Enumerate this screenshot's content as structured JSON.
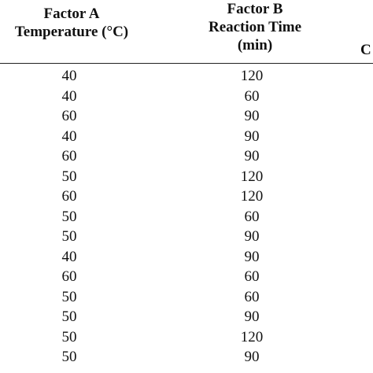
{
  "header": {
    "factor_a_line1": "Factor A",
    "factor_a_line2": "Temperature (°C)",
    "factor_b_line1": "Factor B",
    "factor_b_line2": "Reaction Time",
    "factor_b_line3": "(min)",
    "factor_c_partial": "C"
  },
  "rows": [
    {
      "temperature": "40",
      "time": "120"
    },
    {
      "temperature": "40",
      "time": "60"
    },
    {
      "temperature": "60",
      "time": "90"
    },
    {
      "temperature": "40",
      "time": "90"
    },
    {
      "temperature": "60",
      "time": "90"
    },
    {
      "temperature": "50",
      "time": "120"
    },
    {
      "temperature": "60",
      "time": "120"
    },
    {
      "temperature": "50",
      "time": "60"
    },
    {
      "temperature": "50",
      "time": "90"
    },
    {
      "temperature": "40",
      "time": "90"
    },
    {
      "temperature": "60",
      "time": "60"
    },
    {
      "temperature": "50",
      "time": "60"
    },
    {
      "temperature": "50",
      "time": "90"
    },
    {
      "temperature": "50",
      "time": "120"
    },
    {
      "temperature": "50",
      "time": "90"
    }
  ]
}
